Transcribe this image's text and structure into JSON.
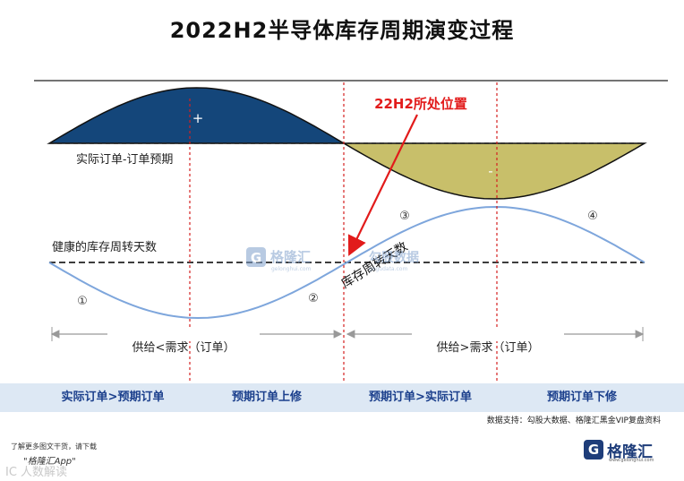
{
  "title": "2022H2半导体库存周期演变过程",
  "labels": {
    "actual_minus_forecast": "实际订单-订单预期",
    "healthy_turnover": "健康的库存周转天数",
    "inventory_turnover": "库存周转天数",
    "plus_sign": "+",
    "minus_sign": "-",
    "current_position": "22H2所处位置",
    "stage_1": "①",
    "stage_2": "②",
    "stage_3": "③",
    "stage_4": "④",
    "supply_less": "供给<需求（订单）",
    "supply_greater": "供给>需求（订单）"
  },
  "phases": [
    "实际订单>预期订单",
    "预期订单上修",
    "预期订单>实际订单",
    "预期订单下修"
  ],
  "colors": {
    "positive_fill": "#14467a",
    "negative_fill": "#c8bf6a",
    "inventory_line": "#7ea6dc",
    "pointer_red": "#e21b1b",
    "divider_red": "#d42020",
    "footer_bg": "#dde8f4",
    "footer_text": "#1b3f8c"
  },
  "watermark": {
    "brand": "格隆汇",
    "brand_url": "gelonghui.com",
    "partner": "勾股数据",
    "partner_url": "gogudata.com"
  },
  "source_note": "数据支持：勾股大数据、格隆汇黑金VIP复盘资料",
  "promo": {
    "line1": "了解更多图文干货，请下载",
    "line2": "\"格隆汇App\""
  },
  "bottom_watermark": "IC 人数解读",
  "logo": {
    "mark": "G",
    "name": "格隆汇",
    "url": "www.gelonghui.com"
  }
}
